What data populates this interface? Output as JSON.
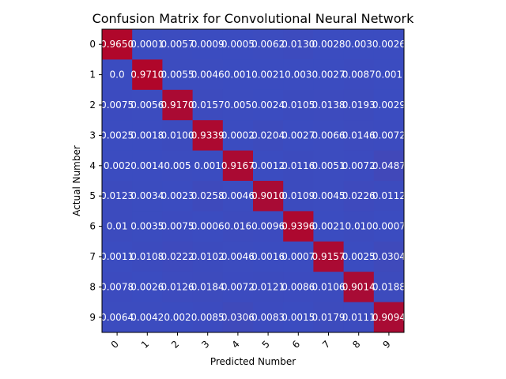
{
  "chart_data": {
    "type": "heatmap",
    "title": "Confusion Matrix for Convolutional Neural Network",
    "xlabel": "Predicted Number",
    "ylabel": "Actual Number",
    "x_categories": [
      "0",
      "1",
      "2",
      "3",
      "4",
      "5",
      "6",
      "7",
      "8",
      "9"
    ],
    "y_categories": [
      "0",
      "1",
      "2",
      "3",
      "4",
      "5",
      "6",
      "7",
      "8",
      "9"
    ],
    "colormap": "coolwarm",
    "color_low": "#3b4cc0",
    "color_high": "#b40426",
    "display": [
      [
        "0.9650",
        "0.0001",
        "0.0057",
        "0.0009",
        "0.0005",
        "0.0062",
        "0.0130",
        "0.0028",
        "0.003",
        "0.0026"
      ],
      [
        "0.0",
        "0.9710",
        "0.0055",
        "0.0046",
        "0.001",
        "0.0021",
        "0.003",
        "0.0027",
        "0.0087",
        "0.001"
      ],
      [
        "0.0075",
        "0.0056",
        "0.9170",
        "0.0157",
        "0.005",
        "0.0024",
        "0.0105",
        "0.0138",
        "0.0193",
        "0.0029"
      ],
      [
        "0.0025",
        "0.0018",
        "0.0100",
        "0.9339",
        "0.0002",
        "0.0204",
        "0.0027",
        "0.0066",
        "0.0146",
        "0.0072"
      ],
      [
        "0.002",
        "0.0014",
        "0.005",
        "0.001",
        "0.9167",
        "0.0012",
        "0.0116",
        "0.0051",
        "0.0072",
        "0.0487"
      ],
      [
        "0.0123",
        "0.0034",
        "0.0023",
        "0.0258",
        "0.0046",
        "0.9010",
        "0.0109",
        "0.0045",
        "0.0226",
        "0.0112"
      ],
      [
        "0.01",
        "0.0035",
        "0.0075",
        "0.0006",
        "0.016",
        "0.0096",
        "0.9396",
        "0.0021",
        "0.010",
        "0.0007"
      ],
      [
        "0.0011",
        "0.0108",
        "0.0222",
        "0.0102",
        "0.0046",
        "0.0016",
        "0.0007",
        "0.9157",
        "0.0025",
        "0.0304"
      ],
      [
        "0.0078",
        "0.0026",
        "0.0126",
        "0.0184",
        "0.0072",
        "0.0121",
        "0.0086",
        "0.0106",
        "0.9014",
        "0.0188"
      ],
      [
        "0.0064",
        "0.0042",
        "0.002",
        "0.0085",
        "0.0306",
        "0.0083",
        "0.0015",
        "0.0179",
        "0.0111",
        "0.9094"
      ]
    ],
    "values": [
      [
        0.965,
        0.0001,
        0.0057,
        0.0009,
        0.0005,
        0.0062,
        0.013,
        0.0028,
        0.003,
        0.0026
      ],
      [
        0.0,
        0.971,
        0.0055,
        0.0046,
        0.001,
        0.0021,
        0.003,
        0.0027,
        0.0087,
        0.001
      ],
      [
        0.0075,
        0.0056,
        0.917,
        0.0157,
        0.005,
        0.0024,
        0.0105,
        0.0138,
        0.0193,
        0.0029
      ],
      [
        0.0025,
        0.0018,
        0.01,
        0.9339,
        0.0002,
        0.0204,
        0.0027,
        0.0066,
        0.0146,
        0.0072
      ],
      [
        0.002,
        0.0014,
        0.005,
        0.001,
        0.9167,
        0.0012,
        0.0116,
        0.0051,
        0.0072,
        0.0487
      ],
      [
        0.0123,
        0.0034,
        0.0023,
        0.0258,
        0.0046,
        0.901,
        0.0109,
        0.0045,
        0.0226,
        0.0112
      ],
      [
        0.01,
        0.0035,
        0.0075,
        0.0006,
        0.016,
        0.0096,
        0.9396,
        0.0021,
        0.01,
        0.0007
      ],
      [
        0.0011,
        0.0108,
        0.0222,
        0.0102,
        0.0046,
        0.0016,
        0.0007,
        0.9157,
        0.0025,
        0.0304
      ],
      [
        0.0078,
        0.0026,
        0.0126,
        0.0184,
        0.0072,
        0.0121,
        0.0086,
        0.0106,
        0.9014,
        0.0188
      ],
      [
        0.0064,
        0.0042,
        0.002,
        0.0085,
        0.0306,
        0.0083,
        0.0015,
        0.0179,
        0.0111,
        0.9094
      ]
    ]
  }
}
